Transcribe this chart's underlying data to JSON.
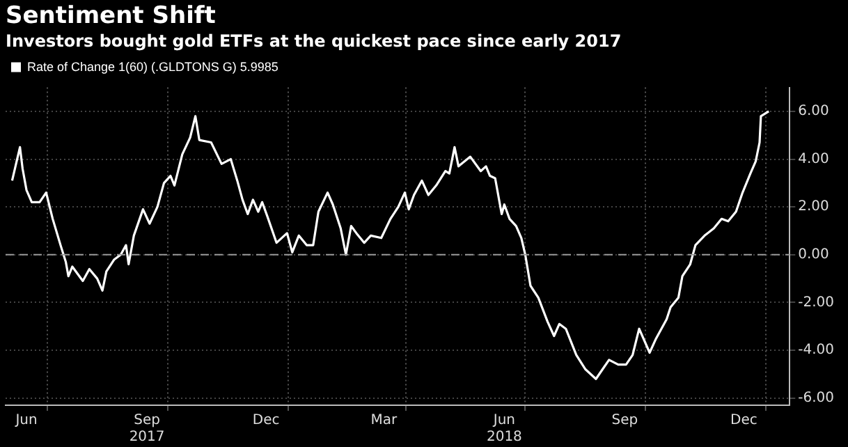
{
  "chart_data": {
    "type": "line",
    "title": "Sentiment Shift",
    "subtitle": "Investors bought gold ETFs at the quickest pace since early 2017",
    "legend": "top left",
    "ref_lines": [
      {
        "axis": "y",
        "value": 0,
        "color": "#999999",
        "line_style": "dashed"
      }
    ],
    "grid": true,
    "marker": "none",
    "line_style": "solid",
    "xlim": [
      "2017-05-30",
      "2019-01-19"
    ],
    "xticks": [
      {
        "value": "2017-06-15",
        "label": "Jun"
      },
      {
        "value": "2017-07-01",
        "label": null
      },
      {
        "value": "2017-09-15",
        "label": "Sep\n2017"
      },
      {
        "value": "2017-10-01",
        "label": null
      },
      {
        "value": "2017-12-15",
        "label": "Dec"
      },
      {
        "value": "2018-01-01",
        "label": null
      },
      {
        "value": "2018-03-15",
        "label": "Mar"
      },
      {
        "value": "2018-04-01",
        "label": null
      },
      {
        "value": "2018-06-15",
        "label": "Jun\n2018"
      },
      {
        "value": "2018-07-01",
        "label": null
      },
      {
        "value": "2018-09-15",
        "label": "Sep"
      },
      {
        "value": "2018-10-01",
        "label": null
      },
      {
        "value": "2018-12-15",
        "label": "Dec"
      },
      {
        "value": "2019-01-01",
        "label": null
      }
    ],
    "ylim": [
      -6.3,
      7
    ],
    "yticks": [
      {
        "value": -6,
        "label": "-6.00"
      },
      {
        "value": -4,
        "label": "-4.00"
      },
      {
        "value": -2,
        "label": "-2.00"
      },
      {
        "value": 0,
        "label": "0.00"
      },
      {
        "value": 2,
        "label": "2.00"
      },
      {
        "value": 4,
        "label": "4.00"
      },
      {
        "value": 6,
        "label": "6.00"
      }
    ],
    "series": [
      {
        "name": "Rate of Change 1(60) (.GLDTONS G) 5.9985",
        "color": "#ffffff",
        "x": [
          "2017-06-04",
          "2017-06-10",
          "2017-06-12",
          "2017-06-15",
          "2017-06-19",
          "2017-06-25",
          "2017-06-30",
          "2017-07-05",
          "2017-07-11",
          "2017-07-15",
          "2017-07-17",
          "2017-07-20",
          "2017-07-28",
          "2017-08-02",
          "2017-08-08",
          "2017-08-12",
          "2017-08-15",
          "2017-08-21",
          "2017-08-26",
          "2017-08-30",
          "2017-09-01",
          "2017-09-05",
          "2017-09-12",
          "2017-09-17",
          "2017-09-23",
          "2017-09-28",
          "2017-10-03",
          "2017-10-06",
          "2017-10-12",
          "2017-10-18",
          "2017-10-22",
          "2017-10-25",
          "2017-11-03",
          "2017-11-11",
          "2017-11-18",
          "2017-11-23",
          "2017-11-27",
          "2017-12-01",
          "2017-12-05",
          "2017-12-09",
          "2017-12-12",
          "2017-12-16",
          "2017-12-23",
          "2017-12-31",
          "2018-01-04",
          "2018-01-09",
          "2018-01-15",
          "2018-01-20",
          "2018-01-24",
          "2018-01-31",
          "2018-02-04",
          "2018-02-10",
          "2018-02-14",
          "2018-02-18",
          "2018-02-22",
          "2018-02-28",
          "2018-03-05",
          "2018-03-13",
          "2018-03-20",
          "2018-03-26",
          "2018-03-31",
          "2018-04-03",
          "2018-04-07",
          "2018-04-13",
          "2018-04-18",
          "2018-04-24",
          "2018-05-01",
          "2018-05-04",
          "2018-05-08",
          "2018-05-11",
          "2018-05-20",
          "2018-05-28",
          "2018-06-01",
          "2018-06-04",
          "2018-06-08",
          "2018-06-13",
          "2018-06-15",
          "2018-06-19",
          "2018-06-24",
          "2018-06-28",
          "2018-07-01",
          "2018-07-05",
          "2018-07-11",
          "2018-07-18",
          "2018-07-23",
          "2018-07-27",
          "2018-08-01",
          "2018-08-09",
          "2018-08-16",
          "2018-08-24",
          "2018-08-29",
          "2018-09-03",
          "2018-09-10",
          "2018-09-16",
          "2018-09-21",
          "2018-09-26",
          "2018-10-04",
          "2018-10-09",
          "2018-10-17",
          "2018-10-20",
          "2018-10-26",
          "2018-10-29",
          "2018-11-04",
          "2018-11-08",
          "2018-11-15",
          "2018-11-22",
          "2018-11-28",
          "2018-12-03",
          "2018-12-09",
          "2018-12-14",
          "2018-12-20",
          "2018-12-24",
          "2018-12-27",
          "2018-12-28",
          "2019-01-03"
        ],
        "values": [
          3.1,
          4.5,
          3.6,
          2.7,
          2.2,
          2.2,
          2.6,
          1.5,
          0.4,
          -0.3,
          -0.9,
          -0.5,
          -1.1,
          -0.6,
          -1.0,
          -1.5,
          -0.7,
          -0.2,
          0.0,
          0.4,
          -0.4,
          0.8,
          1.9,
          1.3,
          2.0,
          3.0,
          3.3,
          2.9,
          4.2,
          4.9,
          5.8,
          4.8,
          4.7,
          3.8,
          4.0,
          3.1,
          2.3,
          1.7,
          2.3,
          1.8,
          2.2,
          1.6,
          0.5,
          0.9,
          0.1,
          0.8,
          0.4,
          0.4,
          1.8,
          2.6,
          2.1,
          1.1,
          0.0,
          1.2,
          0.9,
          0.5,
          0.8,
          0.7,
          1.5,
          2.0,
          2.6,
          1.9,
          2.5,
          3.1,
          2.5,
          2.9,
          3.5,
          3.4,
          4.5,
          3.7,
          4.1,
          3.5,
          3.7,
          3.3,
          3.2,
          1.7,
          2.1,
          1.5,
          1.2,
          0.7,
          0.0,
          -1.3,
          -1.8,
          -2.8,
          -3.4,
          -2.9,
          -3.1,
          -4.2,
          -4.8,
          -5.2,
          -4.8,
          -4.4,
          -4.6,
          -4.6,
          -4.2,
          -3.1,
          -4.1,
          -3.5,
          -2.7,
          -2.2,
          -1.8,
          -0.9,
          -0.4,
          0.4,
          0.8,
          1.1,
          1.5,
          1.4,
          1.8,
          2.6,
          3.4,
          3.9,
          4.7,
          5.8,
          6.0
        ]
      }
    ]
  }
}
